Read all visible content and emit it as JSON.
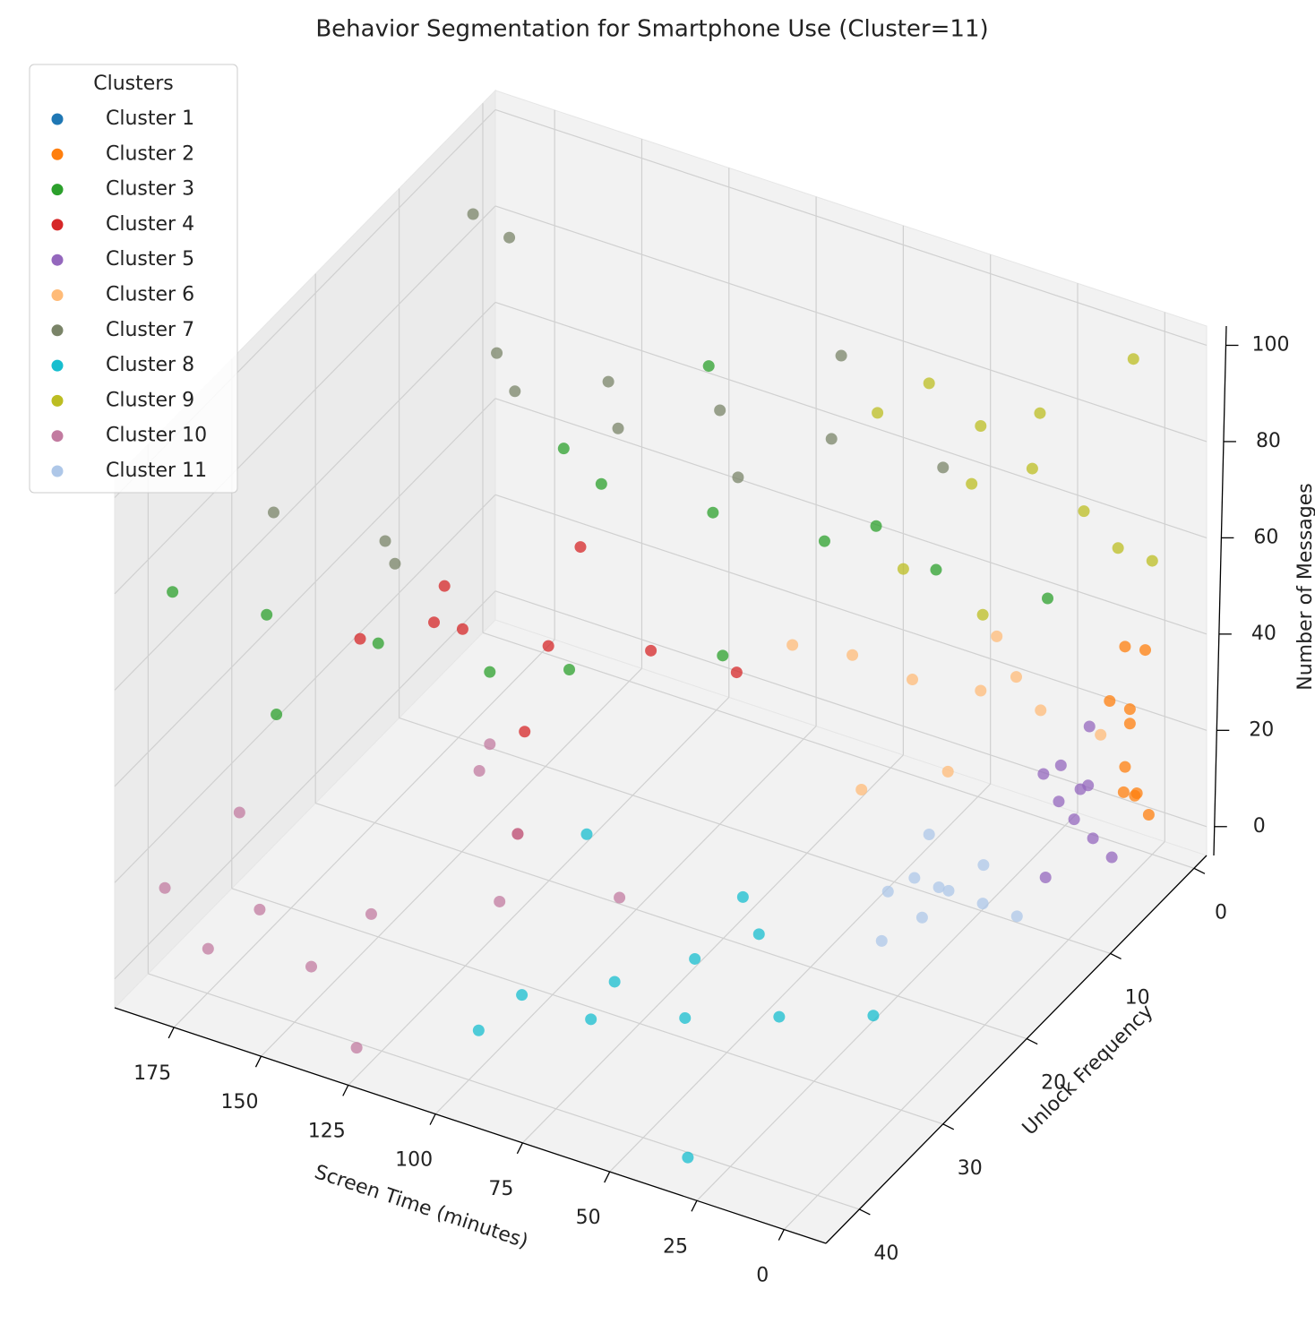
{
  "chart_data": {
    "type": "scatter3d",
    "title": "Behavior Segmentation for Smartphone Use (Cluster=11)",
    "x_label": "Screen Time (minutes)",
    "y_label": "Unlock Frequency",
    "z_label": "Number of Messages",
    "legend_title": "Clusters",
    "legend_position": "upper left",
    "xlim": [
      -12,
      192
    ],
    "ylim": [
      -1.5,
      44
    ],
    "zlim": [
      -6,
      104
    ],
    "xticks": [
      0,
      25,
      50,
      75,
      100,
      125,
      150,
      175
    ],
    "yticks": [
      0,
      10,
      20,
      30,
      40
    ],
    "zticks": [
      0,
      20,
      40,
      60,
      80,
      100
    ],
    "series": [
      {
        "name": "Cluster 1",
        "color": "#1f77b4",
        "x": [],
        "y": [],
        "z": []
      },
      {
        "name": "Cluster 2",
        "color": "#ff7f0e",
        "x": [
          1,
          2,
          3,
          4,
          5,
          2,
          3,
          1,
          4,
          5
        ],
        "y": [
          0,
          1,
          2,
          1,
          3,
          0,
          2,
          3,
          1,
          0
        ],
        "z": [
          2,
          8,
          15,
          22,
          30,
          36,
          40,
          12,
          25,
          5
        ]
      },
      {
        "name": "Cluster 3",
        "color": "#2ca02c",
        "x": [
          30,
          50,
          70,
          90,
          110,
          130,
          150,
          170,
          185,
          60,
          80,
          100,
          120,
          140,
          160
        ],
        "y": [
          0,
          5,
          10,
          15,
          20,
          25,
          30,
          35,
          40,
          8,
          18,
          28,
          3,
          12,
          38
        ],
        "z": [
          40,
          50,
          60,
          70,
          80,
          45,
          55,
          65,
          75,
          62,
          48,
          58,
          72,
          66,
          52
        ]
      },
      {
        "name": "Cluster 4",
        "color": "#d62728",
        "x": [
          100,
          115,
          130,
          145,
          160,
          170,
          120,
          140,
          155,
          110
        ],
        "y": [
          8,
          12,
          18,
          22,
          28,
          15,
          25,
          10,
          20,
          30
        ],
        "z": [
          22,
          30,
          38,
          45,
          50,
          28,
          35,
          42,
          48,
          25
        ]
      },
      {
        "name": "Cluster 5",
        "color": "#9467bd",
        "x": [
          2,
          5,
          8,
          10,
          12,
          6,
          9,
          4,
          11,
          7
        ],
        "y": [
          4,
          5,
          6,
          7,
          8,
          5,
          9,
          6,
          4,
          8
        ],
        "z": [
          0,
          5,
          10,
          15,
          22,
          28,
          3,
          18,
          12,
          25
        ]
      },
      {
        "name": "Cluster 6",
        "color": "#ffbb78",
        "x": [
          10,
          20,
          30,
          40,
          50,
          60,
          15,
          25,
          35,
          45
        ],
        "y": [
          2,
          5,
          8,
          12,
          15,
          18,
          10,
          14,
          4,
          16
        ],
        "z": [
          20,
          28,
          35,
          42,
          50,
          55,
          45,
          30,
          38,
          25
        ]
      },
      {
        "name": "Cluster 7",
        "color": "#7a8468",
        "x": [
          60,
          80,
          100,
          120,
          140,
          160,
          180,
          190,
          70,
          90,
          110,
          130,
          150,
          170
        ],
        "y": [
          0,
          5,
          10,
          15,
          20,
          25,
          30,
          2,
          8,
          12,
          18,
          22,
          28,
          6
        ],
        "z": [
          60,
          70,
          80,
          90,
          100,
          65,
          75,
          85,
          95,
          72,
          88,
          98,
          68,
          92
        ]
      },
      {
        "name": "Cluster 8",
        "color": "#17becf",
        "x": [
          20,
          35,
          50,
          65,
          80,
          95,
          40,
          60,
          75,
          90,
          30,
          55
        ],
        "y": [
          25,
          30,
          35,
          40,
          42,
          28,
          38,
          22,
          33,
          43,
          43,
          26
        ],
        "z": [
          0,
          5,
          10,
          15,
          20,
          25,
          30,
          2,
          8,
          12,
          0,
          18
        ]
      },
      {
        "name": "Cluster 9",
        "color": "#bcbd22",
        "x": [
          0,
          5,
          10,
          20,
          30,
          40,
          50,
          15,
          25,
          35,
          45,
          3
        ],
        "y": [
          0,
          2,
          4,
          6,
          8,
          10,
          12,
          14,
          3,
          7,
          11,
          1
        ],
        "z": [
          55,
          60,
          70,
          80,
          90,
          100,
          95,
          65,
          85,
          75,
          62,
          98
        ]
      },
      {
        "name": "Cluster 10",
        "color": "#c27ba0",
        "x": [
          100,
          120,
          140,
          160,
          180,
          110,
          130,
          150,
          170,
          185,
          125,
          145
        ],
        "y": [
          22,
          28,
          35,
          40,
          43,
          30,
          25,
          38,
          42,
          32,
          43,
          20
        ],
        "z": [
          0,
          5,
          10,
          15,
          20,
          25,
          30,
          2,
          8,
          15,
          0,
          12
        ]
      },
      {
        "name": "Cluster 11",
        "color": "#aec7e8",
        "x": [
          10,
          15,
          20,
          25,
          30,
          35,
          18,
          28,
          22,
          32
        ],
        "y": [
          12,
          14,
          16,
          18,
          13,
          17,
          20,
          15,
          11,
          19
        ],
        "z": [
          0,
          5,
          10,
          15,
          3,
          8,
          12,
          18,
          6,
          2
        ]
      }
    ]
  }
}
